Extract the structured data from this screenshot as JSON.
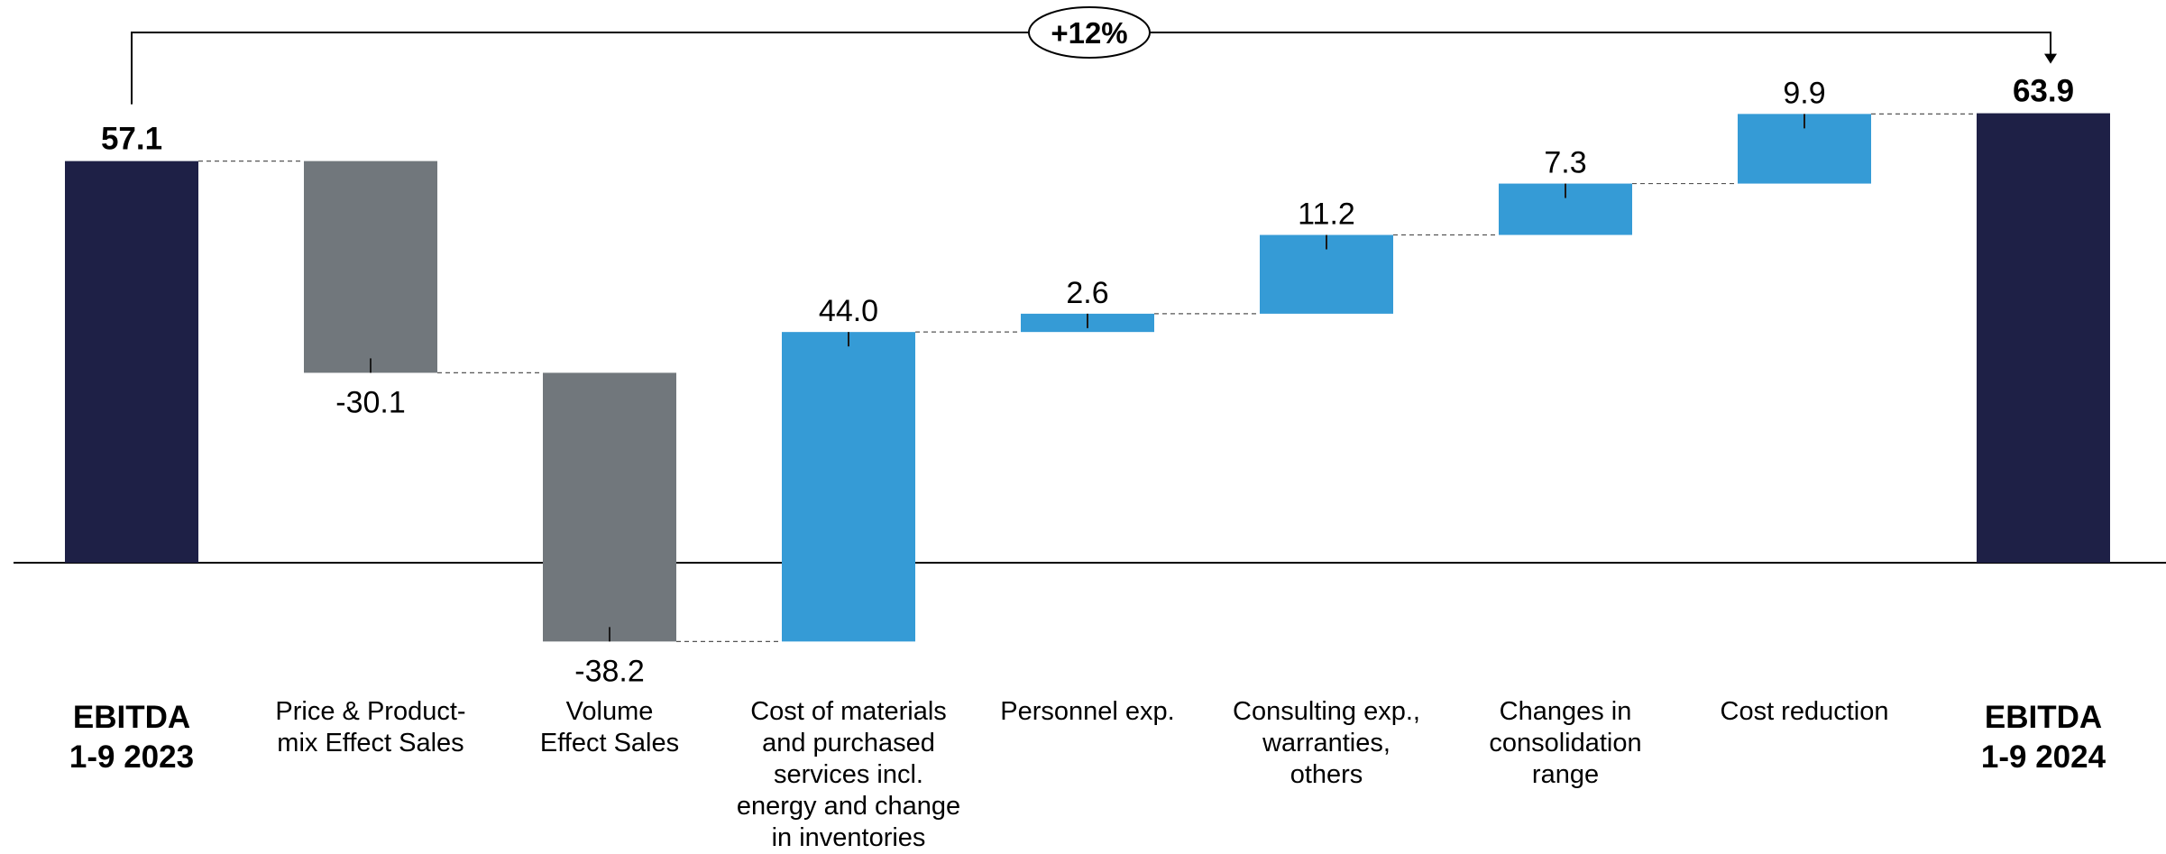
{
  "chart_data": {
    "type": "bar",
    "subtype": "waterfall",
    "title": "",
    "xlabel": "",
    "ylabel": "",
    "categories": [
      "EBITDA\n1-9 2023",
      "Price & Product-\nmix Effect Sales",
      "Volume\nEffect Sales",
      "Cost of materials\nand purchased\nservices incl.\nenergy and change\nin inventories",
      "Personnel exp.",
      "Consulting exp.,\nwarranties,\nothers",
      "Changes in\nconsolidation range",
      "Cost reduction",
      "EBITDA\n1-9 2024"
    ],
    "values": [
      57.1,
      -30.1,
      -38.2,
      44.0,
      2.6,
      11.2,
      7.3,
      9.9,
      63.9
    ],
    "value_labels": [
      "57.1",
      "-30.1",
      "-38.2",
      "44.0",
      "2.6",
      "11.2",
      "7.3",
      "9.9",
      "63.9"
    ],
    "kinds": [
      "total",
      "delta",
      "delta",
      "delta",
      "delta",
      "delta",
      "delta",
      "delta",
      "total"
    ],
    "annotation": {
      "label": "+12%",
      "from": 0,
      "to": 8
    },
    "colors": {
      "total": "#1e2046",
      "negative": "#71777c",
      "positive": "#359bd6"
    },
    "grid": false,
    "legend": "none"
  }
}
